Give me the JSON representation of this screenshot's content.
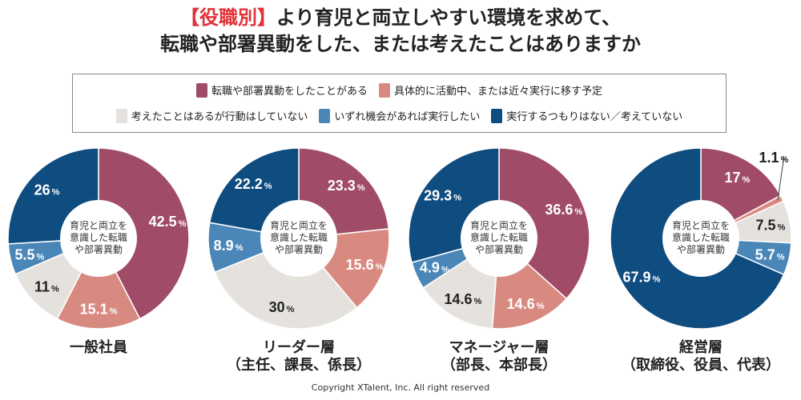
{
  "title": {
    "highlight": "【役職別】",
    "line1_rest": "より育児と両立しやすい環境を求めて、",
    "line2": "転職や部署異動をした、または考えたことはありますか"
  },
  "legend": [
    {
      "label": "転職や部署異動をしたことがある",
      "color": "#a04c66"
    },
    {
      "label": "具体的に活動中、または近々実行に移す予定",
      "color": "#d98a80"
    },
    {
      "label": "考えたことはあるが行動はしていない",
      "color": "#e5e2de"
    },
    {
      "label": "いずれ機会があれば実行したい",
      "color": "#4a87b8"
    },
    {
      "label": "実行するつもりはない／考えていない",
      "color": "#0f4c7f"
    }
  ],
  "center_label": [
    "育児と両立を",
    "意識した転職",
    "や部署異動"
  ],
  "chart_data": [
    {
      "type": "pie",
      "donut": true,
      "title": "一般社員",
      "subtitle": "",
      "values": [
        42.5,
        15.1,
        11,
        5.5,
        26
      ]
    },
    {
      "type": "pie",
      "donut": true,
      "title": "リーダー層",
      "subtitle": "（主任、課長、係長）",
      "values": [
        23.3,
        15.6,
        30,
        8.9,
        22.2
      ]
    },
    {
      "type": "pie",
      "donut": true,
      "title": "マネージャー層",
      "subtitle": "（部長、本部長）",
      "values": [
        36.6,
        14.6,
        14.6,
        4.9,
        29.3
      ]
    },
    {
      "type": "pie",
      "donut": true,
      "title": "経営層",
      "subtitle": "（取締役、役員、代表）",
      "values": [
        17,
        1.1,
        7.5,
        5.7,
        67.9
      ]
    }
  ],
  "unit": "%",
  "copyright": "Copyright XTalent, Inc. All right reserved"
}
